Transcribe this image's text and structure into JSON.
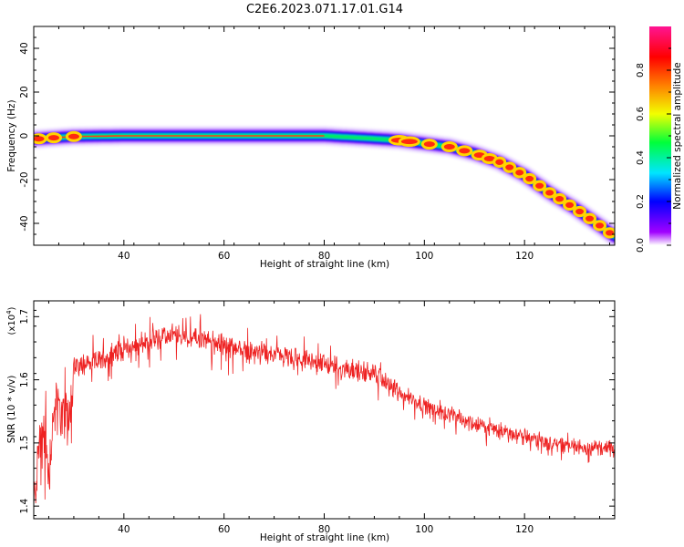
{
  "title": "C2E6.2023.071.17.01.G14",
  "chart_data": [
    {
      "type": "heatmap",
      "xlabel": "Height of straight line (km)",
      "ylabel": "Frequency (Hz)",
      "xlim": [
        22,
        138
      ],
      "ylim": [
        -50,
        50
      ],
      "x_ticks": [
        40,
        60,
        80,
        100,
        120
      ],
      "y_ticks": [
        -40,
        -20,
        0,
        20,
        40
      ],
      "colorbar": {
        "label": "Normalized spectral amplitude",
        "range": [
          0,
          1
        ],
        "ticks": [
          0.0,
          0.2,
          0.4,
          0.6,
          0.8
        ],
        "colors": [
          "#ffffff",
          "#a100ff",
          "#0000ff",
          "#00e5ff",
          "#00ff3a",
          "#f2ff00",
          "#ff8000",
          "#ff0000",
          "#ff1493"
        ]
      },
      "ridge": {
        "x": [
          22,
          30,
          40,
          50,
          60,
          70,
          80,
          88,
          95,
          100,
          105,
          110,
          115,
          120,
          125,
          130,
          135,
          138
        ],
        "y": [
          -1.5,
          -0.3,
          0,
          0,
          0,
          0,
          0,
          -1,
          -2,
          -3.5,
          -5,
          -8,
          -12,
          -18,
          -26,
          -33,
          -41,
          -46
        ]
      },
      "grid": false
    },
    {
      "type": "line",
      "series": [
        {
          "color": "#ee2222"
        }
      ],
      "xlabel": "Height of straight line (km)",
      "ylabel": "SNR (10 * v/v)",
      "multiplier": "(x10",
      "multiplier_exp": "4",
      "multiplier_close": ")",
      "xlim": [
        22,
        138
      ],
      "ylim": [
        13800,
        17250
      ],
      "x_ticks": [
        40,
        60,
        80,
        100,
        120
      ],
      "y_ticks": [
        1.4,
        1.5,
        1.6,
        1.7
      ],
      "trend": {
        "x": [
          22,
          23,
          24,
          25,
          26,
          27,
          28,
          29,
          30,
          35,
          40,
          45,
          50,
          55,
          60,
          65,
          70,
          75,
          80,
          85,
          90,
          95,
          100,
          105,
          110,
          115,
          120,
          125,
          130,
          135,
          138
        ],
        "y": [
          13950,
          14900,
          15300,
          14500,
          15500,
          15700,
          15300,
          15400,
          16200,
          16300,
          16500,
          16600,
          16700,
          16650,
          16550,
          16450,
          16400,
          16300,
          16250,
          16150,
          16100,
          15800,
          15600,
          15450,
          15300,
          15200,
          15100,
          15000,
          14950,
          14920,
          14900
        ]
      },
      "grid": false
    }
  ]
}
